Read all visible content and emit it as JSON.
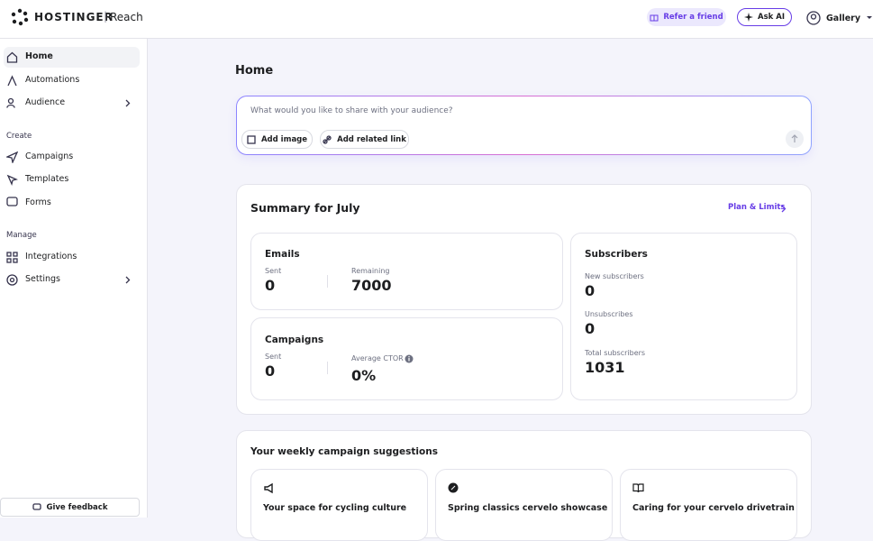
{
  "header": {
    "brand": "HOSTINGER",
    "product": "Reach",
    "refer": "Refer a friend",
    "ask_ai": "Ask AI",
    "account": "Gallery"
  },
  "sidebar": {
    "nav": [
      "Home",
      "Automations",
      "Audience"
    ],
    "sections": [
      {
        "title": "Create",
        "items": [
          "Campaigns",
          "Templates",
          "Forms"
        ]
      },
      {
        "title": "Manage",
        "items": [
          "Integrations",
          "Settings"
        ]
      }
    ],
    "feedback": "Give feedback"
  },
  "main": {
    "title": "Home",
    "composer": {
      "placeholder": "What would you like to share with your audience?",
      "add_image": "Add image",
      "add_link": "Add related link"
    },
    "summary": {
      "title": "Summary for July",
      "plan_link": "Plan & Limits",
      "emails": {
        "title": "Emails",
        "sent_label": "Sent",
        "sent": 0,
        "remaining_label": "Remaining",
        "remaining": 7000
      },
      "campaigns": {
        "title": "Campaigns",
        "sent_label": "Sent",
        "sent": 0,
        "ctor_label": "Average CTOR",
        "ctor": "0%"
      },
      "subscribers": {
        "title": "Subscribers",
        "new_label": "New subscribers",
        "new": 0,
        "unsub_label": "Unsubscribes",
        "unsub": 0,
        "total_label": "Total subscribers",
        "total": 1031
      }
    },
    "suggestions": {
      "title": "Your weekly campaign suggestions",
      "cards": [
        "Your space for cycling culture",
        "Spring classics cervelo showcase",
        "Caring for your cervelo drivetrain"
      ]
    }
  }
}
